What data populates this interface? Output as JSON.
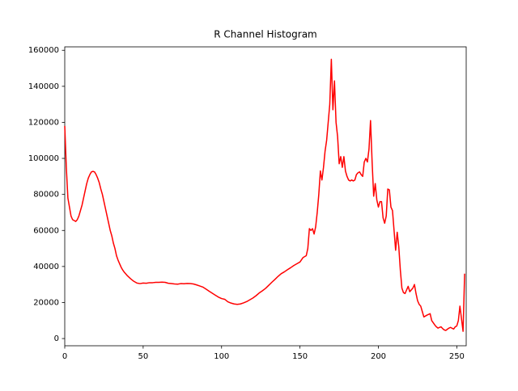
{
  "chart_data": {
    "type": "line",
    "title": "R Channel Histogram",
    "color": "#ff0000",
    "x": [
      0,
      1,
      2,
      3,
      4,
      5,
      6,
      7,
      8,
      9,
      10,
      11,
      12,
      13,
      14,
      15,
      16,
      17,
      18,
      19,
      20,
      21,
      22,
      23,
      24,
      25,
      26,
      27,
      28,
      29,
      30,
      31,
      32,
      33,
      34,
      35,
      36,
      37,
      38,
      39,
      40,
      42,
      44,
      46,
      48,
      50,
      52,
      54,
      56,
      58,
      60,
      62,
      64,
      66,
      68,
      70,
      72,
      74,
      76,
      78,
      80,
      82,
      84,
      86,
      88,
      90,
      92,
      94,
      96,
      98,
      100,
      102,
      104,
      106,
      108,
      110,
      112,
      114,
      116,
      118,
      120,
      122,
      124,
      126,
      128,
      130,
      132,
      134,
      136,
      138,
      140,
      142,
      144,
      146,
      148,
      150,
      152,
      154,
      155,
      156,
      157,
      158,
      159,
      160,
      161,
      162,
      163,
      164,
      165,
      166,
      167,
      168,
      169,
      170,
      171,
      172,
      173,
      174,
      175,
      176,
      177,
      178,
      179,
      180,
      181,
      182,
      183,
      184,
      185,
      186,
      187,
      188,
      189,
      190,
      191,
      192,
      193,
      194,
      195,
      196,
      197,
      198,
      199,
      200,
      201,
      202,
      203,
      204,
      205,
      206,
      207,
      208,
      209,
      210,
      211,
      212,
      213,
      214,
      215,
      216,
      217,
      218,
      219,
      220,
      221,
      222,
      223,
      224,
      225,
      226,
      227,
      228,
      229,
      231,
      233,
      234,
      236,
      237,
      238,
      239,
      240,
      241,
      242,
      243,
      244,
      245,
      246,
      247,
      248,
      249,
      250,
      251,
      252,
      253,
      254,
      255
    ],
    "values": [
      118000,
      95000,
      78000,
      73000,
      68000,
      66000,
      65500,
      65000,
      66000,
      68000,
      71000,
      74000,
      78000,
      82000,
      86000,
      89000,
      91000,
      92500,
      92800,
      92500,
      91000,
      89000,
      86500,
      83000,
      80000,
      76000,
      72000,
      68000,
      64000,
      60000,
      57000,
      53000,
      50000,
      46000,
      43500,
      41500,
      39500,
      38000,
      36800,
      35800,
      34800,
      33200,
      31800,
      30800,
      30500,
      30800,
      30700,
      31000,
      31000,
      31200,
      31200,
      31300,
      31200,
      30700,
      30500,
      30300,
      30200,
      30500,
      30400,
      30600,
      30500,
      30300,
      29800,
      29200,
      28600,
      27500,
      26300,
      25200,
      24100,
      23000,
      22200,
      21800,
      20400,
      19700,
      19200,
      19000,
      19200,
      19800,
      20500,
      21500,
      22500,
      23800,
      25300,
      26500,
      27800,
      29500,
      31200,
      32800,
      34500,
      36000,
      37000,
      38200,
      39300,
      40500,
      41500,
      42500,
      45000,
      46000,
      50000,
      61000,
      60000,
      61000,
      58000,
      62000,
      70000,
      80000,
      93000,
      88000,
      95000,
      104000,
      110000,
      120000,
      130000,
      155000,
      127000,
      143000,
      120000,
      112000,
      97000,
      101000,
      95000,
      101000,
      93000,
      90000,
      88000,
      87500,
      88000,
      87500,
      88000,
      91000,
      92000,
      92500,
      91000,
      90000,
      98000,
      100000,
      98000,
      105000,
      121000,
      98000,
      79000,
      86000,
      77000,
      73000,
      76000,
      76000,
      67000,
      64000,
      68000,
      83000,
      82500,
      73000,
      71000,
      60000,
      49000,
      59000,
      51000,
      38000,
      28000,
      25500,
      25000,
      27000,
      29000,
      26000,
      27000,
      28000,
      30000,
      25000,
      21000,
      19000,
      18000,
      15000,
      12000,
      13000,
      13800,
      10000,
      7500,
      6500,
      5800,
      6200,
      6500,
      5500,
      4800,
      4500,
      5200,
      5800,
      6200,
      5700,
      5300,
      6500,
      7000,
      10000,
      18000,
      11000,
      4000,
      36000
    ],
    "xlim": [
      0,
      256
    ],
    "ylim": [
      -4000,
      161900
    ],
    "xticks": [
      0,
      50,
      100,
      150,
      200,
      250
    ],
    "yticks": [
      0,
      20000,
      40000,
      60000,
      80000,
      100000,
      120000,
      140000,
      160000
    ]
  }
}
